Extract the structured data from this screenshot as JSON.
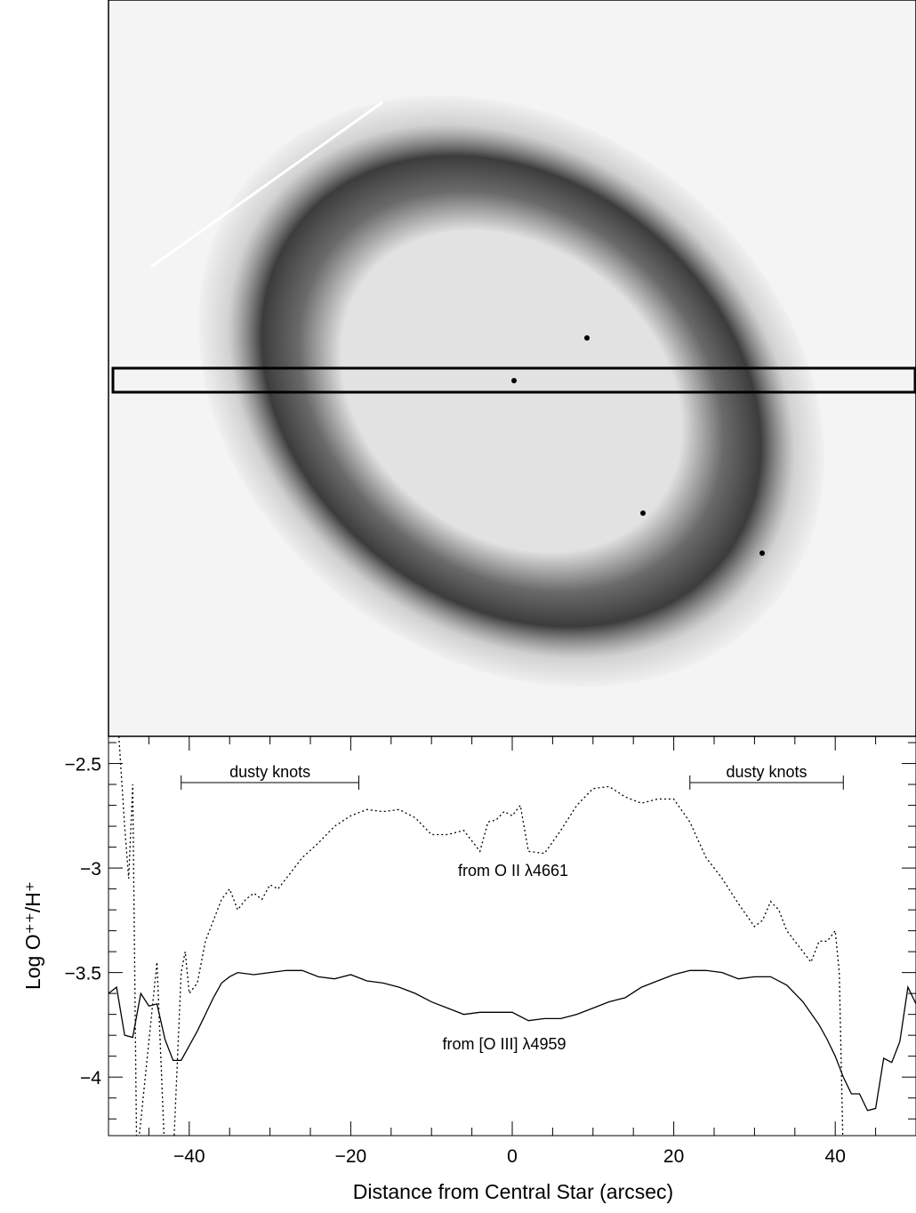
{
  "chart_data": {
    "type": "line",
    "xlabel": "Distance from Central Star (arcsec)",
    "ylabel": "Log O⁺⁺/H⁺",
    "xlim": [
      -50,
      50
    ],
    "ylim": [
      -4.28,
      -2.37
    ],
    "xticks": [
      {
        "value": -40,
        "label": "−40"
      },
      {
        "value": -20,
        "label": "−20"
      },
      0,
      20,
      40
    ],
    "xminorticks": [
      -45,
      -35,
      -30,
      -25,
      -15,
      -10,
      -5,
      5,
      10,
      15,
      25,
      30,
      35,
      45
    ],
    "yticks": [
      {
        "value": -4,
        "label": "−4"
      },
      {
        "value": -3.5,
        "label": "−3.5"
      },
      {
        "value": -3,
        "label": "−3"
      },
      {
        "value": -2.5,
        "label": "−2.5"
      }
    ],
    "yminorticks": [
      -4.2,
      -4.1,
      -3.9,
      -3.8,
      -3.7,
      -3.6,
      -3.4,
      -3.3,
      -3.2,
      -3.1,
      -2.9,
      -2.8,
      -2.7,
      -2.6,
      -2.4
    ],
    "annotations": [
      {
        "text": "dusty knots",
        "range": [
          -41,
          -19
        ]
      },
      {
        "text": "dusty knots",
        "range": [
          22,
          41
        ]
      }
    ],
    "series": [
      {
        "name": "from O II λ4661",
        "color": "#000000",
        "style": "dotted",
        "x": [
          -49,
          -48,
          -47.5,
          -47,
          -46.5,
          -44,
          -43,
          -42,
          -41,
          -40.5,
          -40,
          -39,
          -38,
          -37,
          -36,
          -35,
          -34,
          -33,
          -32,
          -31,
          -30,
          -29,
          -28,
          -27,
          -26,
          -24,
          -22,
          -20,
          -18,
          -16,
          -14,
          -12,
          -10,
          -8,
          -6,
          -4,
          -3,
          -2,
          -1,
          0,
          1,
          2,
          4,
          6,
          8,
          10,
          12,
          14,
          16,
          18,
          20,
          22,
          24,
          26,
          28,
          30,
          31,
          32,
          33,
          34,
          36,
          37,
          38,
          39,
          40,
          40.5,
          41
        ],
        "values": [
          -2.2,
          -2.8,
          -3.05,
          -2.6,
          -4.4,
          -3.45,
          -4.4,
          -4.4,
          -3.5,
          -3.4,
          -3.6,
          -3.55,
          -3.35,
          -3.25,
          -3.15,
          -3.1,
          -3.2,
          -3.15,
          -3.12,
          -3.15,
          -3.08,
          -3.1,
          -3.05,
          -3.0,
          -2.95,
          -2.88,
          -2.8,
          -2.75,
          -2.72,
          -2.73,
          -2.72,
          -2.76,
          -2.84,
          -2.84,
          -2.82,
          -2.92,
          -2.78,
          -2.77,
          -2.73,
          -2.75,
          -2.7,
          -2.92,
          -2.93,
          -2.82,
          -2.7,
          -2.62,
          -2.61,
          -2.66,
          -2.69,
          -2.67,
          -2.67,
          -2.78,
          -2.95,
          -3.05,
          -3.17,
          -3.28,
          -3.25,
          -3.16,
          -3.2,
          -3.3,
          -3.4,
          -3.45,
          -3.35,
          -3.35,
          -3.3,
          -3.5,
          -4.4
        ]
      },
      {
        "name": "from [O III] λ4959",
        "color": "#000000",
        "style": "solid",
        "x": [
          -50,
          -49,
          -48,
          -47,
          -46,
          -45,
          -44,
          -43,
          -42,
          -41,
          -40,
          -39,
          -38,
          -37,
          -36,
          -35,
          -34,
          -32,
          -30,
          -28,
          -26,
          -24,
          -22,
          -20,
          -18,
          -16,
          -14,
          -12,
          -10,
          -8,
          -6,
          -4,
          -2,
          0,
          2,
          4,
          6,
          8,
          10,
          12,
          14,
          16,
          18,
          20,
          22,
          24,
          26,
          28,
          30,
          32,
          34,
          36,
          38,
          39,
          40,
          41,
          42,
          43,
          44,
          45,
          46,
          47,
          48,
          49,
          50
        ],
        "values": [
          -3.6,
          -3.57,
          -3.8,
          -3.81,
          -3.6,
          -3.66,
          -3.65,
          -3.82,
          -3.92,
          -3.92,
          -3.85,
          -3.78,
          -3.7,
          -3.62,
          -3.55,
          -3.52,
          -3.5,
          -3.51,
          -3.5,
          -3.49,
          -3.49,
          -3.52,
          -3.53,
          -3.51,
          -3.54,
          -3.55,
          -3.57,
          -3.6,
          -3.64,
          -3.67,
          -3.7,
          -3.69,
          -3.69,
          -3.69,
          -3.73,
          -3.72,
          -3.72,
          -3.7,
          -3.67,
          -3.64,
          -3.62,
          -3.57,
          -3.54,
          -3.51,
          -3.49,
          -3.49,
          -3.5,
          -3.53,
          -3.52,
          -3.52,
          -3.56,
          -3.64,
          -3.75,
          -3.82,
          -3.9,
          -4.0,
          -4.08,
          -4.08,
          -4.16,
          -4.15,
          -3.91,
          -3.93,
          -3.83,
          -3.57,
          -3.65
        ]
      }
    ]
  }
}
